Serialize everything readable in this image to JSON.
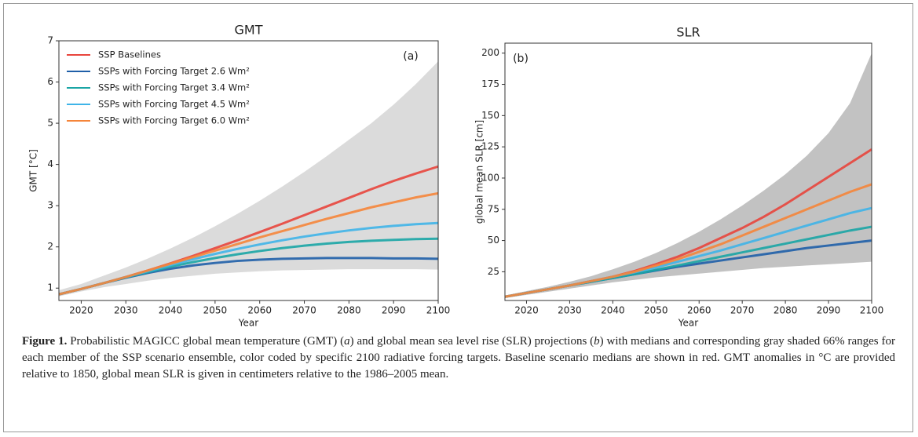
{
  "chart_data": [
    {
      "type": "line",
      "title": "GMT",
      "annotation": "(a)",
      "xlabel": "Year",
      "ylabel": "GMT [°C]",
      "x": [
        2015,
        2020,
        2025,
        2030,
        2035,
        2040,
        2045,
        2050,
        2055,
        2060,
        2065,
        2070,
        2075,
        2080,
        2085,
        2090,
        2095,
        2100
      ],
      "xlim": [
        2015,
        2100
      ],
      "xticks": [
        2020,
        2030,
        2040,
        2050,
        2060,
        2070,
        2080,
        2090,
        2100
      ],
      "ylim": [
        0.7,
        7
      ],
      "yticks": [
        1,
        2,
        3,
        4,
        5,
        6,
        7
      ],
      "legend": "upper left",
      "range": {
        "color": "#bdbdbd",
        "lower": [
          0.8,
          0.92,
          1.02,
          1.1,
          1.18,
          1.25,
          1.3,
          1.35,
          1.38,
          1.41,
          1.43,
          1.44,
          1.45,
          1.46,
          1.46,
          1.46,
          1.46,
          1.45
        ],
        "upper": [
          0.95,
          1.1,
          1.3,
          1.5,
          1.72,
          1.96,
          2.22,
          2.5,
          2.8,
          3.12,
          3.46,
          3.82,
          4.2,
          4.6,
          5.0,
          5.45,
          5.95,
          6.5
        ]
      },
      "series": [
        {
          "name": "SSP Baselines",
          "color": "#e8453c",
          "values": [
            0.85,
            0.98,
            1.12,
            1.27,
            1.43,
            1.6,
            1.78,
            1.97,
            2.16,
            2.36,
            2.56,
            2.77,
            2.98,
            3.19,
            3.4,
            3.6,
            3.78,
            3.95
          ]
        },
        {
          "name": "SSPs with Forcing Target 2.6 Wm²",
          "color": "#1f5fa8",
          "values": [
            0.85,
            0.98,
            1.12,
            1.25,
            1.37,
            1.47,
            1.55,
            1.61,
            1.66,
            1.69,
            1.71,
            1.72,
            1.73,
            1.73,
            1.73,
            1.72,
            1.72,
            1.71
          ]
        },
        {
          "name": "SSPs with Forcing Target 3.4 Wm²",
          "color": "#1aa5a5",
          "values": [
            0.85,
            0.98,
            1.12,
            1.26,
            1.39,
            1.52,
            1.63,
            1.73,
            1.82,
            1.9,
            1.97,
            2.03,
            2.08,
            2.12,
            2.15,
            2.17,
            2.19,
            2.2
          ]
        },
        {
          "name": "SSPs with Forcing Target 4.5 Wm²",
          "color": "#3fb4e8",
          "values": [
            0.85,
            0.98,
            1.12,
            1.27,
            1.41,
            1.56,
            1.7,
            1.83,
            1.95,
            2.06,
            2.16,
            2.25,
            2.33,
            2.4,
            2.46,
            2.51,
            2.55,
            2.58
          ]
        },
        {
          "name": "SSPs with Forcing Target 6.0 Wm²",
          "color": "#f5853a",
          "values": [
            0.85,
            0.98,
            1.12,
            1.27,
            1.43,
            1.59,
            1.75,
            1.91,
            2.07,
            2.23,
            2.38,
            2.53,
            2.68,
            2.82,
            2.96,
            3.08,
            3.2,
            3.3
          ]
        }
      ]
    },
    {
      "type": "line",
      "title": "SLR",
      "annotation": "(b)",
      "xlabel": "Year",
      "ylabel": "global mean SLR [cm]",
      "x": [
        2015,
        2020,
        2025,
        2030,
        2035,
        2040,
        2045,
        2050,
        2055,
        2060,
        2065,
        2070,
        2075,
        2080,
        2085,
        2090,
        2095,
        2100
      ],
      "xlim": [
        2015,
        2100
      ],
      "xticks": [
        2020,
        2030,
        2040,
        2050,
        2060,
        2070,
        2080,
        2090,
        2100
      ],
      "ylim": [
        2,
        208
      ],
      "yticks": [
        25,
        50,
        75,
        100,
        125,
        150,
        175,
        200
      ],
      "range": {
        "color": "#8f8f8f",
        "lower": [
          4,
          6.5,
          9,
          11.5,
          14,
          16.5,
          18.5,
          20.5,
          22,
          23.5,
          25,
          26.5,
          28,
          29,
          30,
          31,
          32,
          33
        ],
        "upper": [
          6,
          9.5,
          13,
          17,
          21.5,
          27,
          33,
          40,
          48,
          57,
          67,
          78,
          90,
          103,
          118,
          136,
          160,
          200
        ]
      },
      "series": [
        {
          "color": "#e8453c",
          "values": [
            5,
            8,
            11,
            14,
            17.5,
            21,
            25.5,
            31,
            37,
            44,
            52,
            60,
            69,
            79,
            90,
            101,
            112,
            123
          ]
        },
        {
          "color": "#1f5fa8",
          "values": [
            5,
            8,
            11,
            14,
            17,
            20,
            23,
            26,
            29,
            31.5,
            34,
            36.5,
            39,
            41.5,
            44,
            46,
            48,
            50
          ]
        },
        {
          "color": "#1aa5a5",
          "values": [
            5,
            8,
            11,
            14,
            17,
            20,
            23,
            26.5,
            30,
            33.5,
            37,
            40.5,
            44,
            47.5,
            51,
            54.5,
            58,
            61
          ]
        },
        {
          "color": "#3fb4e8",
          "values": [
            5,
            8,
            11,
            14,
            17.5,
            21,
            24.5,
            28.5,
            33,
            37.5,
            42,
            47,
            52,
            57,
            62,
            67,
            72,
            76
          ]
        },
        {
          "color": "#f5853a",
          "values": [
            5,
            8,
            11,
            14,
            17.5,
            21,
            25,
            30,
            35,
            41,
            47,
            54,
            61,
            68,
            75,
            82,
            89,
            95
          ]
        }
      ]
    }
  ],
  "caption": [
    {
      "text": "Figure 1.",
      "style": "bold"
    },
    {
      "text": " Probabilistic MAGICC global mean temperature (GMT) (",
      "style": "normal"
    },
    {
      "text": "a",
      "style": "italic"
    },
    {
      "text": ") and global mean sea level rise (SLR) projections (",
      "style": "normal"
    },
    {
      "text": "b",
      "style": "italic"
    },
    {
      "text": ") with medians and corresponding gray shaded 66% ranges for each member of the SSP scenario ensemble, color coded by specific 2100 radiative forcing targets. Baseline scenario medians are shown in red. GMT anomalies in °C are provided relative to 1850, global mean SLR is given in centimeters relative to the 1986–2005 mean.",
      "style": "normal"
    }
  ]
}
